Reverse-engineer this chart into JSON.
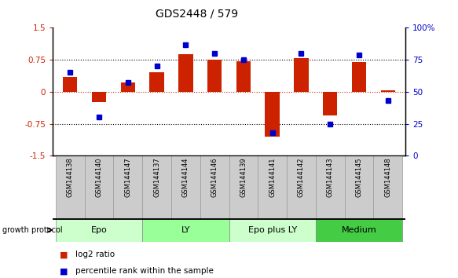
{
  "title": "GDS2448 / 579",
  "samples": [
    "GSM144138",
    "GSM144140",
    "GSM144147",
    "GSM144137",
    "GSM144144",
    "GSM144146",
    "GSM144139",
    "GSM144141",
    "GSM144142",
    "GSM144143",
    "GSM144145",
    "GSM144148"
  ],
  "log2_ratio": [
    0.35,
    -0.25,
    0.22,
    0.45,
    0.88,
    0.75,
    0.72,
    -1.05,
    0.78,
    -0.55,
    0.7,
    0.04
  ],
  "percentile_rank": [
    65,
    30,
    57,
    70,
    87,
    80,
    75,
    18,
    80,
    25,
    79,
    43
  ],
  "groups": [
    {
      "label": "Epo",
      "start": 0,
      "end": 3,
      "color": "#ccffcc"
    },
    {
      "label": "LY",
      "start": 3,
      "end": 6,
      "color": "#99ff99"
    },
    {
      "label": "Epo plus LY",
      "start": 6,
      "end": 9,
      "color": "#ccffcc"
    },
    {
      "label": "Medium",
      "start": 9,
      "end": 12,
      "color": "#44cc44"
    }
  ],
  "bar_color": "#cc2200",
  "dot_color": "#0000cc",
  "ylim_left": [
    -1.5,
    1.5
  ],
  "ylim_right": [
    0,
    100
  ],
  "yticks_left": [
    -1.5,
    -0.75,
    0,
    0.75,
    1.5
  ],
  "yticks_right": [
    0,
    25,
    50,
    75,
    100
  ],
  "bar_width": 0.5,
  "legend_items": [
    {
      "color": "#cc2200",
      "label": "log2 ratio"
    },
    {
      "color": "#0000cc",
      "label": "percentile rank within the sample"
    }
  ],
  "growth_protocol_label": "growth protocol",
  "tick_label_color_left": "#cc2200",
  "tick_label_color_right": "#0000cc",
  "sample_box_color": "#cccccc",
  "sample_box_edge": "#999999"
}
